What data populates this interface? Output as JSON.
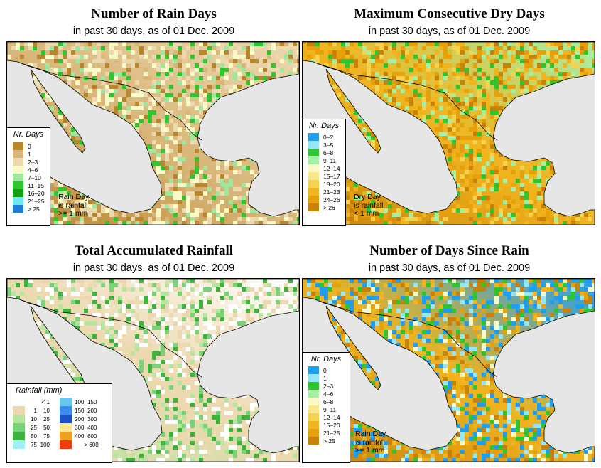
{
  "panels": {
    "rain_days": {
      "title": "Number of Rain Days",
      "subtitle": "in past 30 days, as of  01 Dec. 2009",
      "legend_title": "Nr. Days",
      "legend": [
        {
          "label": "0",
          "color": "#b8862d"
        },
        {
          "label": "1",
          "color": "#d9b77a"
        },
        {
          "label": "2–3",
          "color": "#ecd9b0"
        },
        {
          "label": "4–6",
          "color": "#fafac8"
        },
        {
          "label": "7–10",
          "color": "#9ee89e"
        },
        {
          "label": "11–15",
          "color": "#2ec52e"
        },
        {
          "label": "16–20",
          "color": "#16a016"
        },
        {
          "label": "21–25",
          "color": "#6ee6f0"
        },
        {
          "label": "> 25",
          "color": "#1e7ed6"
        }
      ],
      "note_lines": [
        "Rain Day",
        "is rainfall",
        ">= 1 mm"
      ]
    },
    "dry_days": {
      "title": "Maximum Consecutive Dry Days",
      "subtitle": "in past 30 days, as of  01 Dec. 2009",
      "legend_title": "Nr. Days",
      "legend": [
        {
          "label": "0–2",
          "color": "#1e9ef0"
        },
        {
          "label": "3–5",
          "color": "#96e6fa"
        },
        {
          "label": "6–8",
          "color": "#2ec52e"
        },
        {
          "label": "9–11",
          "color": "#a6f0a6"
        },
        {
          "label": "12–14",
          "color": "#fafac8"
        },
        {
          "label": "15–17",
          "color": "#fae68c"
        },
        {
          "label": "18–20",
          "color": "#f5d250"
        },
        {
          "label": "21–23",
          "color": "#f0b41e"
        },
        {
          "label": "24–26",
          "color": "#e6a00a"
        },
        {
          "label": "> 26",
          "color": "#c8820a"
        }
      ],
      "note_lines": [
        "Dry Day",
        "is rainfall",
        "< 1 mm"
      ]
    },
    "total_rainfall": {
      "title": "Total Accumulated Rainfall",
      "subtitle": "in past 30 days, as of  01 Dec. 2009",
      "legend_title": "Rainfall (mm)",
      "legend_left": [
        {
          "from": "",
          "to": "< 1",
          "color": "#ffffff"
        },
        {
          "from": "1",
          "to": "10",
          "color": "#ecd9b0"
        },
        {
          "from": "10",
          "to": "25",
          "color": "#b4e6a0"
        },
        {
          "from": "25",
          "to": "50",
          "color": "#78d278"
        },
        {
          "from": "50",
          "to": "75",
          "color": "#3cb43c"
        },
        {
          "from": "75",
          "to": "100",
          "color": "#a0f0f5"
        }
      ],
      "legend_right": [
        {
          "from": "100",
          "to": "150",
          "color": "#64c8f0"
        },
        {
          "from": "150",
          "to": "200",
          "color": "#3c8cf0"
        },
        {
          "from": "200",
          "to": "300",
          "color": "#1e50c8"
        },
        {
          "from": "300",
          "to": "400",
          "color": "#fae68c"
        },
        {
          "from": "400",
          "to": "600",
          "color": "#f0a01e"
        },
        {
          "from": "",
          "to": "> 600",
          "color": "#f03c0a"
        }
      ]
    },
    "days_since_rain": {
      "title": "Number of Days Since Rain",
      "subtitle": "in past 30 days, as of  01 Dec. 2009",
      "legend_title": "Nr. Days",
      "legend": [
        {
          "label": "0",
          "color": "#1e9ef0"
        },
        {
          "label": "1",
          "color": "#96e6fa"
        },
        {
          "label": "2–3",
          "color": "#2ec52e"
        },
        {
          "label": "4–6",
          "color": "#a6f0a6"
        },
        {
          "label": "6–8",
          "color": "#fafac8"
        },
        {
          "label": "9–11",
          "color": "#fae68c"
        },
        {
          "label": "12–14",
          "color": "#f5d250"
        },
        {
          "label": "15–20",
          "color": "#f0b41e"
        },
        {
          "label": "21–25",
          "color": "#e6a00a"
        },
        {
          "label": "> 25",
          "color": "#c8820a"
        }
      ],
      "note_lines": [
        "Rain Day",
        "is rainfall",
        ">= 1 mm"
      ]
    }
  },
  "colors": {
    "ocean": "#e6e6e6",
    "border": "#000000"
  }
}
